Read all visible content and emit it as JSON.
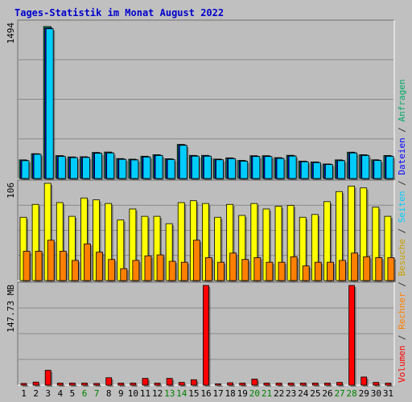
{
  "title": "Tages-Statistik im Monat August 2022",
  "colors": {
    "background": "#c0c0c0",
    "panel": "#bdbdbd",
    "grid": "#8a8a8a",
    "title": "#0000cc",
    "anfragen": "#00aa66",
    "dateien": "#0000ff",
    "seiten": "#00ccff",
    "besuche": "#ffff00",
    "rechner": "#ff8000",
    "volumen": "#ff0000",
    "weekend": "#008000"
  },
  "chart_data": [
    {
      "type": "bar",
      "name": "panel-hits",
      "categories": [
        "1",
        "2",
        "3",
        "4",
        "5",
        "6",
        "7",
        "8",
        "9",
        "10",
        "11",
        "12",
        "13",
        "14",
        "15",
        "16",
        "17",
        "18",
        "19",
        "20",
        "21",
        "22",
        "23",
        "24",
        "25",
        "26",
        "27",
        "28",
        "29",
        "30",
        "31"
      ],
      "weekend_days": [
        "6",
        "7",
        "13",
        "14",
        "20",
        "21",
        "27",
        "28"
      ],
      "ymax_label": "1494",
      "ylim": [
        0,
        1494
      ],
      "series": [
        {
          "name": "Anfragen",
          "values": [
            183,
            244,
            1494,
            225,
            212,
            214,
            256,
            260,
            196,
            190,
            219,
            234,
            194,
            335,
            227,
            227,
            191,
            203,
            178,
            224,
            224,
            205,
            228,
            171,
            163,
            143,
            183,
            259,
            234,
            184,
            226
          ]
        },
        {
          "name": "Dateien",
          "values": [
            178,
            241,
            1480,
            220,
            208,
            210,
            251,
            254,
            191,
            185,
            214,
            229,
            190,
            330,
            222,
            222,
            187,
            198,
            173,
            219,
            219,
            200,
            223,
            167,
            159,
            140,
            178,
            254,
            229,
            180,
            221
          ]
        },
        {
          "name": "Seiten",
          "values": [
            175,
            238,
            1472,
            217,
            205,
            207,
            248,
            251,
            188,
            182,
            211,
            226,
            187,
            326,
            219,
            219,
            184,
            195,
            170,
            216,
            216,
            197,
            220,
            164,
            156,
            137,
            175,
            251,
            226,
            177,
            218
          ]
        }
      ]
    },
    {
      "type": "bar",
      "name": "panel-visits",
      "categories": [
        "1",
        "2",
        "3",
        "4",
        "5",
        "6",
        "7",
        "8",
        "9",
        "10",
        "11",
        "12",
        "13",
        "14",
        "15",
        "16",
        "17",
        "18",
        "19",
        "20",
        "21",
        "22",
        "23",
        "24",
        "25",
        "26",
        "27",
        "28",
        "29",
        "30",
        "31"
      ],
      "ymax_label": "106",
      "ylim": [
        0,
        106
      ],
      "series": [
        {
          "name": "Besuche",
          "values": [
            69,
            83,
            106,
            85,
            70,
            90,
            88,
            84,
            66,
            78,
            70,
            70,
            62,
            85,
            87,
            84,
            69,
            83,
            71,
            84,
            78,
            81,
            82,
            69,
            72,
            86,
            97,
            103,
            101,
            80,
            70
          ]
        },
        {
          "name": "Rechner",
          "values": [
            32,
            32,
            44,
            32,
            22,
            40,
            31,
            23,
            13,
            22,
            27,
            28,
            21,
            20,
            44,
            25,
            20,
            30,
            23,
            25,
            20,
            20,
            26,
            16,
            20,
            20,
            22,
            30,
            26,
            25,
            25
          ]
        }
      ]
    },
    {
      "type": "bar",
      "name": "panel-volume",
      "categories": [
        "1",
        "2",
        "3",
        "4",
        "5",
        "6",
        "7",
        "8",
        "9",
        "10",
        "11",
        "12",
        "13",
        "14",
        "15",
        "16",
        "17",
        "18",
        "19",
        "20",
        "21",
        "22",
        "23",
        "24",
        "25",
        "26",
        "27",
        "28",
        "29",
        "30",
        "31"
      ],
      "ymax_label": "147.73 MB",
      "ylim": [
        0,
        147.73
      ],
      "series": [
        {
          "name": "Volumen",
          "values": [
            2.5,
            4.5,
            22,
            3,
            3,
            3,
            2.5,
            11,
            3,
            3,
            10,
            3,
            10,
            4,
            8,
            147.73,
            2,
            3.5,
            3,
            9,
            3,
            3,
            3,
            3,
            3,
            3,
            4,
            147.73,
            12,
            4,
            3
          ]
        }
      ]
    }
  ],
  "right_axis_label": [
    {
      "text": "Volumen",
      "color": "volumen"
    },
    {
      "text": " / ",
      "color": "dark"
    },
    {
      "text": "Rechner",
      "color": "rechner"
    },
    {
      "text": " / ",
      "color": "dark"
    },
    {
      "text": "Besuche",
      "color": "besuche_label"
    },
    {
      "text": " / ",
      "color": "dark"
    },
    {
      "text": "Seiten",
      "color": "seiten"
    },
    {
      "text": " / ",
      "color": "dark"
    },
    {
      "text": "Dateien",
      "color": "dateien"
    },
    {
      "text": " / ",
      "color": "dark"
    },
    {
      "text": "Anfragen",
      "color": "anfragen"
    }
  ]
}
